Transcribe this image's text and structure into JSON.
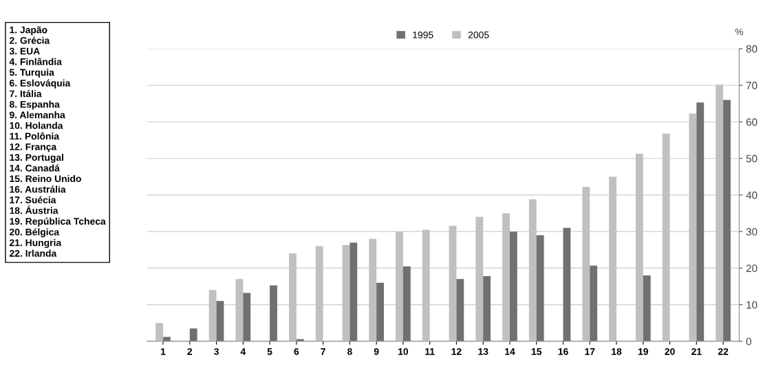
{
  "chart_data": {
    "type": "bar",
    "ylabel": "%",
    "categories": [
      "1",
      "2",
      "3",
      "4",
      "5",
      "6",
      "7",
      "8",
      "9",
      "10",
      "11",
      "12",
      "13",
      "14",
      "15",
      "16",
      "17",
      "18",
      "19",
      "20",
      "21",
      "22"
    ],
    "series": [
      {
        "name": "2005",
        "color": "#c0c0c0",
        "values": [
          5,
          null,
          14,
          17,
          null,
          24,
          26,
          26.3,
          28,
          30,
          30.5,
          31.6,
          34,
          35,
          38.8,
          null,
          42.2,
          45,
          51.3,
          56.8,
          62.3,
          70.2
        ]
      },
      {
        "name": "1995",
        "color": "#707070",
        "values": [
          1.2,
          3.5,
          11,
          13.2,
          15.3,
          0.6,
          null,
          27,
          16,
          20.5,
          null,
          17,
          17.8,
          30,
          29,
          31,
          20.7,
          null,
          18,
          null,
          65.3,
          66
        ]
      }
    ],
    "ylim": [
      0,
      80
    ],
    "yticks": [
      0,
      10,
      20,
      30,
      40,
      50,
      60,
      70,
      80
    ],
    "grid": "y",
    "legend": "top",
    "annotations": [
      "1. Japão\n2. Grécia\n3. EUA\n4. Finlândia\n5. Turquia\n6. Eslováquia\n7. Itália\n8. Espanha\n9. Alemanha\n10. Holanda\n11. Polônia\n12. França\n13. Portugal\n14. Canadá\n15. Reino Unido\n16. Austrália\n17. Suécia\n18. Áustria\n19. República Tcheca\n20. Bélgica\n21. Hungria\n22. Irlanda"
    ]
  }
}
